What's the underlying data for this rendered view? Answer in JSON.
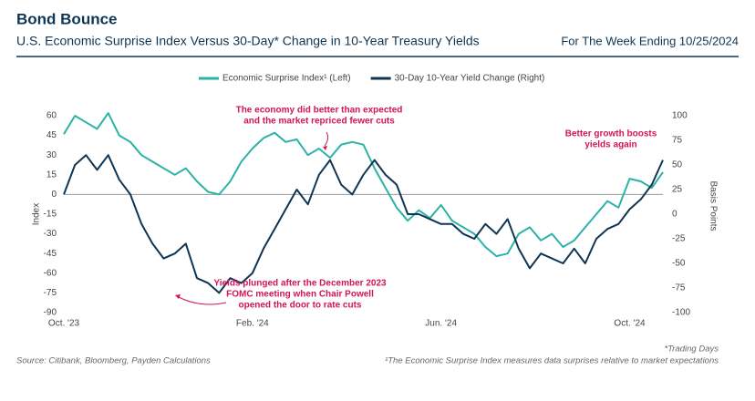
{
  "chart_data": {
    "type": "line",
    "title": "Bond Bounce",
    "subtitle": "U.S. Economic Surprise Index Versus 30-Day* Change in 10-Year Treasury Yields",
    "date_note": "For The Week Ending 10/25/2024",
    "ylabel": "Index",
    "y2label": "Basis Points",
    "categories": [
      "Oct. '23",
      null,
      null,
      null,
      null,
      null,
      null,
      null,
      null,
      null,
      null,
      null,
      null,
      null,
      null,
      null,
      null,
      "Feb. '24",
      null,
      null,
      null,
      null,
      null,
      null,
      null,
      null,
      null,
      null,
      null,
      null,
      null,
      null,
      null,
      null,
      "Jun. '24",
      null,
      null,
      null,
      null,
      null,
      null,
      null,
      null,
      null,
      null,
      null,
      null,
      null,
      null,
      null,
      null,
      "Oct. '24",
      null,
      null,
      null
    ],
    "series": [
      {
        "name": "Economic Surprise Index¹ (Left)",
        "color": "#2ab3a6",
        "values": [
          46,
          60,
          55,
          50,
          62,
          45,
          40,
          30,
          25,
          20,
          15,
          20,
          10,
          2,
          0,
          10,
          25,
          35,
          43,
          47,
          40,
          42,
          30,
          35,
          28,
          38,
          40,
          38,
          20,
          5,
          -10,
          -20,
          -12,
          -18,
          -8,
          -20,
          -25,
          -30,
          -40,
          -47,
          -45,
          -30,
          -25,
          -35,
          -30,
          -40,
          -35,
          -25,
          -15,
          -5,
          -10,
          12,
          10,
          5,
          17
        ]
      },
      {
        "name": "30-Day 10-Year Yield Change (Right)",
        "color": "#0f3554",
        "axis": "y2",
        "values": [
          20,
          50,
          60,
          45,
          60,
          35,
          20,
          -10,
          -30,
          -45,
          -40,
          -30,
          -65,
          -70,
          -80,
          -65,
          -70,
          -60,
          -35,
          -15,
          5,
          25,
          10,
          40,
          55,
          30,
          20,
          40,
          55,
          40,
          30,
          0,
          0,
          -5,
          -10,
          -10,
          -20,
          -25,
          -10,
          -20,
          -5,
          -35,
          -55,
          -40,
          -45,
          -50,
          -35,
          -50,
          -25,
          -15,
          -10,
          5,
          15,
          30,
          55
        ]
      }
    ],
    "ylim": [
      -90,
      60
    ],
    "yticks": [
      60,
      45,
      30,
      15,
      0,
      -15,
      -30,
      -45,
      -60,
      -75,
      -90
    ],
    "y2lim": [
      -100,
      100
    ],
    "y2ticks": [
      100,
      75,
      50,
      25,
      0,
      -25,
      -50,
      -75,
      -100
    ],
    "annotations": [
      [
        "The economy did better than expected",
        "and the market repriced fewer cuts"
      ],
      [
        "Better growth boosts",
        "yields again"
      ],
      [
        "Yields plunged after the December 2023",
        "FOMC meeting when Chair Powell",
        "opened the door to rate cuts"
      ]
    ],
    "source": "Source: Citibank, Bloomberg, Payden Calculations",
    "notes": [
      "*Trading Days",
      "¹The Economic Surprise Index measures data surprises relative to market expectations"
    ]
  }
}
